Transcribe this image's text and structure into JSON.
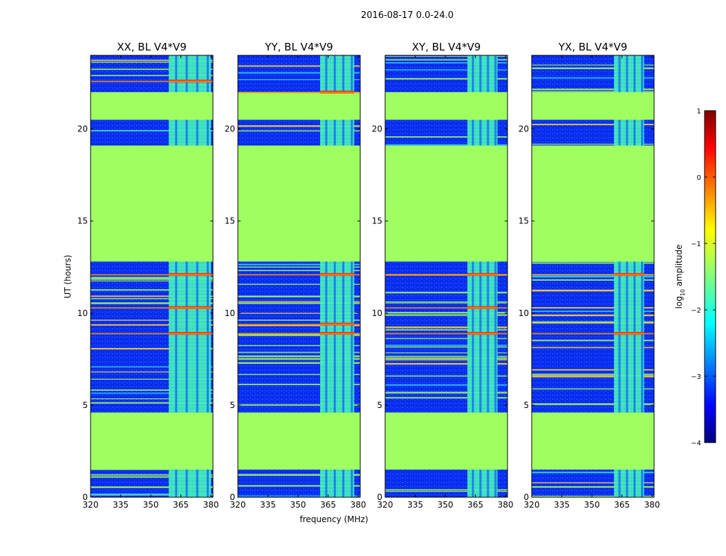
{
  "suptitle": "2016-08-17 0.0-24.0",
  "xlabel": "frequency (MHz)",
  "ylabel": "UT (hours)",
  "colorbar": {
    "label_prefix": "log",
    "label_sub": "10",
    "label_suffix": " amplitude",
    "ticks": [
      "1",
      "0",
      "−1",
      "−2",
      "−3",
      "−4"
    ],
    "tick_values": [
      1,
      0,
      -1,
      -2,
      -3,
      -4
    ],
    "range": [
      -4,
      1
    ]
  },
  "colors": {
    "flag_fill": "#a0ff60",
    "low": "#0a28ee",
    "rfi_band": "#40f0b0",
    "frame": "#000000"
  },
  "chart_data": [
    {
      "type": "heatmap",
      "title": "XX, BL V4*V9",
      "xlim": [
        320,
        381
      ],
      "ylim": [
        0,
        24
      ],
      "xticks": [
        320,
        335,
        350,
        365,
        380
      ],
      "yticks": [
        0,
        5,
        10,
        15,
        20
      ],
      "flagged_ut_ranges": [
        [
          1.5,
          4.6
        ],
        [
          12.8,
          19.1
        ],
        [
          20.5,
          22.0
        ]
      ],
      "bright_band_mhz": [
        359,
        380
      ],
      "hot_spots_ut": [
        8.9,
        10.3,
        12.1,
        22.6
      ],
      "show_ylabel": true,
      "show_xlabel": false
    },
    {
      "type": "heatmap",
      "title": "YY, BL V4*V9",
      "xlim": [
        320,
        381
      ],
      "ylim": [
        0,
        24
      ],
      "xticks": [
        320,
        335,
        350,
        365,
        380
      ],
      "yticks": [
        0,
        5,
        10,
        15,
        20
      ],
      "flagged_ut_ranges": [
        [
          1.5,
          4.6
        ],
        [
          12.8,
          19.1
        ],
        [
          20.5,
          22.0
        ]
      ],
      "bright_band_mhz": [
        361,
        378
      ],
      "hot_spots_ut": [
        8.9,
        9.4,
        12.1,
        22.0
      ],
      "show_ylabel": false,
      "show_xlabel": true
    },
    {
      "type": "heatmap",
      "title": "XY, BL V4*V9",
      "xlim": [
        320,
        381
      ],
      "ylim": [
        0,
        24
      ],
      "xticks": [
        320,
        335,
        350,
        365,
        380
      ],
      "yticks": [
        0,
        5,
        10,
        15,
        20
      ],
      "flagged_ut_ranges": [
        [
          1.5,
          4.6
        ],
        [
          12.8,
          19.1
        ],
        [
          20.5,
          22.0
        ]
      ],
      "bright_band_mhz": [
        361,
        376
      ],
      "hot_spots_ut": [
        8.9,
        10.3,
        12.1
      ],
      "show_ylabel": false,
      "show_xlabel": false
    },
    {
      "type": "heatmap",
      "title": "YX, BL V4*V9",
      "xlim": [
        320,
        381
      ],
      "ylim": [
        0,
        24
      ],
      "xticks": [
        320,
        335,
        350,
        365,
        380
      ],
      "yticks": [
        0,
        5,
        10,
        15,
        20
      ],
      "flagged_ut_ranges": [
        [
          1.5,
          4.6
        ],
        [
          12.8,
          19.1
        ],
        [
          20.5,
          22.0
        ]
      ],
      "bright_band_mhz": [
        361,
        376
      ],
      "hot_spots_ut": [
        8.9,
        12.1
      ],
      "show_ylabel": false,
      "show_xlabel": false
    }
  ]
}
